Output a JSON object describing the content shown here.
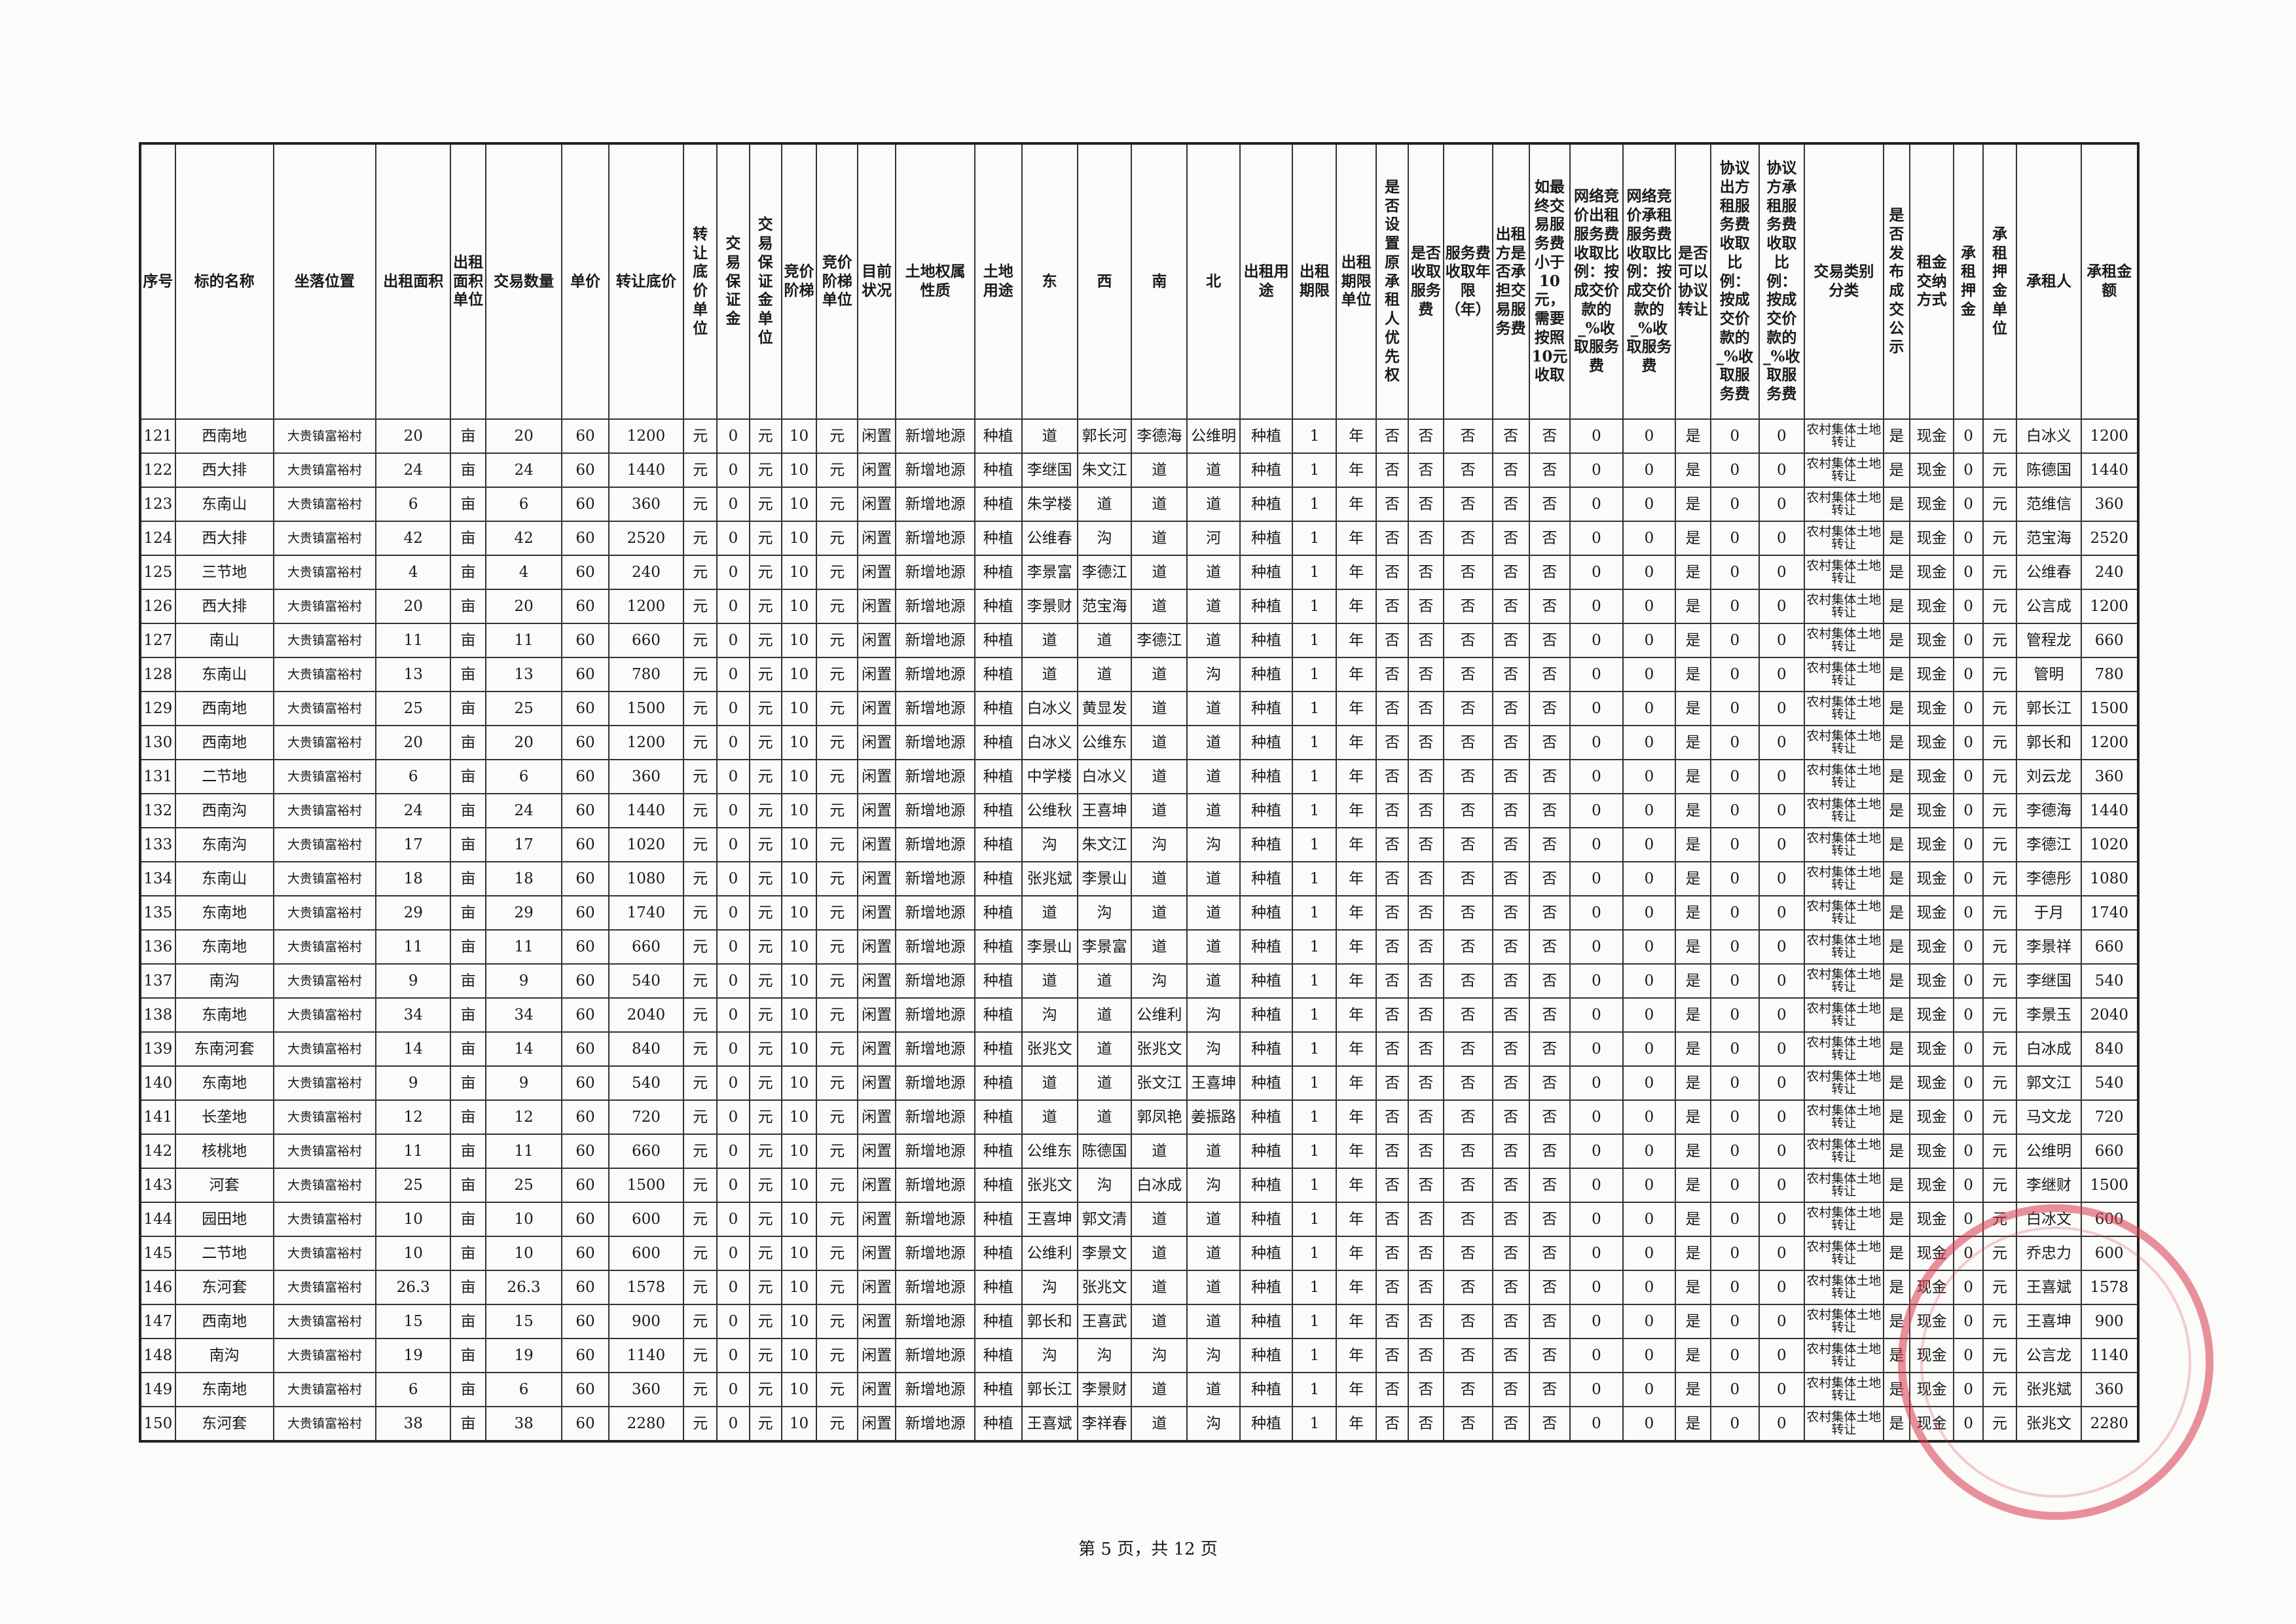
{
  "table": {
    "header": [
      "序号",
      "标的名称",
      "坐落位置",
      "出租面积",
      "出租面积单位",
      "交易数量",
      "单价",
      "转让底价",
      "转让底价单位",
      "交易保证金",
      "交易保证金单位",
      "竞价阶梯",
      "竞价阶梯单位",
      "目前状况",
      "土地权属性质",
      "土地用途",
      "东",
      "西",
      "南",
      "北",
      "出租用途",
      "出租期限",
      "出租期限单位",
      "是否设置原承租人优先权",
      "是否收取服务费",
      "服务费收取年限（年）",
      "出租方是否承担交易服务费",
      "如最终交易服务费小于10元，需要按照10元收取",
      "网络竞价出租服务费收取比例：按成交价款的_%收取服务费",
      "网络竞价承租服务费收取比例：按成交价款的_%收取服务费",
      "是否可以协议转让",
      "协议出方租服务费收取比例：按成交价款的_%收取服务费",
      "协议方承租服务费收取比例：按成交价款的_%收取服务费",
      "交易类别分类",
      "是否发布成交公示",
      "租金交纳方式",
      "承租押金",
      "承租押金单位",
      "承租人",
      "承租金额"
    ],
    "rows": [
      [
        "121",
        "西南地",
        "大贵镇富裕村",
        "20",
        "亩",
        "20",
        "60",
        "1200",
        "元",
        "0",
        "元",
        "10",
        "元",
        "闲置",
        "新增地源",
        "种植",
        "道",
        "郭长河",
        "李德海",
        "公维明",
        "种植",
        "1",
        "年",
        "否",
        "否",
        "否",
        "否",
        "否",
        "0",
        "0",
        "是",
        "0",
        "0",
        "农村集体土地转让",
        "是",
        "现金",
        "0",
        "元",
        "白冰义",
        "1200"
      ],
      [
        "122",
        "西大排",
        "大贵镇富裕村",
        "24",
        "亩",
        "24",
        "60",
        "1440",
        "元",
        "0",
        "元",
        "10",
        "元",
        "闲置",
        "新增地源",
        "种植",
        "李继国",
        "朱文江",
        "道",
        "道",
        "种植",
        "1",
        "年",
        "否",
        "否",
        "否",
        "否",
        "否",
        "0",
        "0",
        "是",
        "0",
        "0",
        "农村集体土地转让",
        "是",
        "现金",
        "0",
        "元",
        "陈德国",
        "1440"
      ],
      [
        "123",
        "东南山",
        "大贵镇富裕村",
        "6",
        "亩",
        "6",
        "60",
        "360",
        "元",
        "0",
        "元",
        "10",
        "元",
        "闲置",
        "新增地源",
        "种植",
        "朱学楼",
        "道",
        "道",
        "道",
        "种植",
        "1",
        "年",
        "否",
        "否",
        "否",
        "否",
        "否",
        "0",
        "0",
        "是",
        "0",
        "0",
        "农村集体土地转让",
        "是",
        "现金",
        "0",
        "元",
        "范维信",
        "360"
      ],
      [
        "124",
        "西大排",
        "大贵镇富裕村",
        "42",
        "亩",
        "42",
        "60",
        "2520",
        "元",
        "0",
        "元",
        "10",
        "元",
        "闲置",
        "新增地源",
        "种植",
        "公维春",
        "沟",
        "道",
        "河",
        "种植",
        "1",
        "年",
        "否",
        "否",
        "否",
        "否",
        "否",
        "0",
        "0",
        "是",
        "0",
        "0",
        "农村集体土地转让",
        "是",
        "现金",
        "0",
        "元",
        "范宝海",
        "2520"
      ],
      [
        "125",
        "三节地",
        "大贵镇富裕村",
        "4",
        "亩",
        "4",
        "60",
        "240",
        "元",
        "0",
        "元",
        "10",
        "元",
        "闲置",
        "新增地源",
        "种植",
        "李景富",
        "李德江",
        "道",
        "道",
        "种植",
        "1",
        "年",
        "否",
        "否",
        "否",
        "否",
        "否",
        "0",
        "0",
        "是",
        "0",
        "0",
        "农村集体土地转让",
        "是",
        "现金",
        "0",
        "元",
        "公维春",
        "240"
      ],
      [
        "126",
        "西大排",
        "大贵镇富裕村",
        "20",
        "亩",
        "20",
        "60",
        "1200",
        "元",
        "0",
        "元",
        "10",
        "元",
        "闲置",
        "新增地源",
        "种植",
        "李景财",
        "范宝海",
        "道",
        "道",
        "种植",
        "1",
        "年",
        "否",
        "否",
        "否",
        "否",
        "否",
        "0",
        "0",
        "是",
        "0",
        "0",
        "农村集体土地转让",
        "是",
        "现金",
        "0",
        "元",
        "公言成",
        "1200"
      ],
      [
        "127",
        "南山",
        "大贵镇富裕村",
        "11",
        "亩",
        "11",
        "60",
        "660",
        "元",
        "0",
        "元",
        "10",
        "元",
        "闲置",
        "新增地源",
        "种植",
        "道",
        "道",
        "李德江",
        "道",
        "种植",
        "1",
        "年",
        "否",
        "否",
        "否",
        "否",
        "否",
        "0",
        "0",
        "是",
        "0",
        "0",
        "农村集体土地转让",
        "是",
        "现金",
        "0",
        "元",
        "管程龙",
        "660"
      ],
      [
        "128",
        "东南山",
        "大贵镇富裕村",
        "13",
        "亩",
        "13",
        "60",
        "780",
        "元",
        "0",
        "元",
        "10",
        "元",
        "闲置",
        "新增地源",
        "种植",
        "道",
        "道",
        "道",
        "沟",
        "种植",
        "1",
        "年",
        "否",
        "否",
        "否",
        "否",
        "否",
        "0",
        "0",
        "是",
        "0",
        "0",
        "农村集体土地转让",
        "是",
        "现金",
        "0",
        "元",
        "管明",
        "780"
      ],
      [
        "129",
        "西南地",
        "大贵镇富裕村",
        "25",
        "亩",
        "25",
        "60",
        "1500",
        "元",
        "0",
        "元",
        "10",
        "元",
        "闲置",
        "新增地源",
        "种植",
        "白冰义",
        "黄显发",
        "道",
        "道",
        "种植",
        "1",
        "年",
        "否",
        "否",
        "否",
        "否",
        "否",
        "0",
        "0",
        "是",
        "0",
        "0",
        "农村集体土地转让",
        "是",
        "现金",
        "0",
        "元",
        "郭长江",
        "1500"
      ],
      [
        "130",
        "西南地",
        "大贵镇富裕村",
        "20",
        "亩",
        "20",
        "60",
        "1200",
        "元",
        "0",
        "元",
        "10",
        "元",
        "闲置",
        "新增地源",
        "种植",
        "白冰义",
        "公维东",
        "道",
        "道",
        "种植",
        "1",
        "年",
        "否",
        "否",
        "否",
        "否",
        "否",
        "0",
        "0",
        "是",
        "0",
        "0",
        "农村集体土地转让",
        "是",
        "现金",
        "0",
        "元",
        "郭长和",
        "1200"
      ],
      [
        "131",
        "二节地",
        "大贵镇富裕村",
        "6",
        "亩",
        "6",
        "60",
        "360",
        "元",
        "0",
        "元",
        "10",
        "元",
        "闲置",
        "新增地源",
        "种植",
        "中学楼",
        "白冰义",
        "道",
        "道",
        "种植",
        "1",
        "年",
        "否",
        "否",
        "否",
        "否",
        "否",
        "0",
        "0",
        "是",
        "0",
        "0",
        "农村集体土地转让",
        "是",
        "现金",
        "0",
        "元",
        "刘云龙",
        "360"
      ],
      [
        "132",
        "西南沟",
        "大贵镇富裕村",
        "24",
        "亩",
        "24",
        "60",
        "1440",
        "元",
        "0",
        "元",
        "10",
        "元",
        "闲置",
        "新增地源",
        "种植",
        "公维秋",
        "王喜坤",
        "道",
        "道",
        "种植",
        "1",
        "年",
        "否",
        "否",
        "否",
        "否",
        "否",
        "0",
        "0",
        "是",
        "0",
        "0",
        "农村集体土地转让",
        "是",
        "现金",
        "0",
        "元",
        "李德海",
        "1440"
      ],
      [
        "133",
        "东南沟",
        "大贵镇富裕村",
        "17",
        "亩",
        "17",
        "60",
        "1020",
        "元",
        "0",
        "元",
        "10",
        "元",
        "闲置",
        "新增地源",
        "种植",
        "沟",
        "朱文江",
        "沟",
        "沟",
        "种植",
        "1",
        "年",
        "否",
        "否",
        "否",
        "否",
        "否",
        "0",
        "0",
        "是",
        "0",
        "0",
        "农村集体土地转让",
        "是",
        "现金",
        "0",
        "元",
        "李德江",
        "1020"
      ],
      [
        "134",
        "东南山",
        "大贵镇富裕村",
        "18",
        "亩",
        "18",
        "60",
        "1080",
        "元",
        "0",
        "元",
        "10",
        "元",
        "闲置",
        "新增地源",
        "种植",
        "张兆斌",
        "李景山",
        "道",
        "道",
        "种植",
        "1",
        "年",
        "否",
        "否",
        "否",
        "否",
        "否",
        "0",
        "0",
        "是",
        "0",
        "0",
        "农村集体土地转让",
        "是",
        "现金",
        "0",
        "元",
        "李德彤",
        "1080"
      ],
      [
        "135",
        "东南地",
        "大贵镇富裕村",
        "29",
        "亩",
        "29",
        "60",
        "1740",
        "元",
        "0",
        "元",
        "10",
        "元",
        "闲置",
        "新增地源",
        "种植",
        "道",
        "沟",
        "道",
        "道",
        "种植",
        "1",
        "年",
        "否",
        "否",
        "否",
        "否",
        "否",
        "0",
        "0",
        "是",
        "0",
        "0",
        "农村集体土地转让",
        "是",
        "现金",
        "0",
        "元",
        "于月",
        "1740"
      ],
      [
        "136",
        "东南地",
        "大贵镇富裕村",
        "11",
        "亩",
        "11",
        "60",
        "660",
        "元",
        "0",
        "元",
        "10",
        "元",
        "闲置",
        "新增地源",
        "种植",
        "李景山",
        "李景富",
        "道",
        "道",
        "种植",
        "1",
        "年",
        "否",
        "否",
        "否",
        "否",
        "否",
        "0",
        "0",
        "是",
        "0",
        "0",
        "农村集体土地转让",
        "是",
        "现金",
        "0",
        "元",
        "李景祥",
        "660"
      ],
      [
        "137",
        "南沟",
        "大贵镇富裕村",
        "9",
        "亩",
        "9",
        "60",
        "540",
        "元",
        "0",
        "元",
        "10",
        "元",
        "闲置",
        "新增地源",
        "种植",
        "道",
        "道",
        "沟",
        "道",
        "种植",
        "1",
        "年",
        "否",
        "否",
        "否",
        "否",
        "否",
        "0",
        "0",
        "是",
        "0",
        "0",
        "农村集体土地转让",
        "是",
        "现金",
        "0",
        "元",
        "李继国",
        "540"
      ],
      [
        "138",
        "东南地",
        "大贵镇富裕村",
        "34",
        "亩",
        "34",
        "60",
        "2040",
        "元",
        "0",
        "元",
        "10",
        "元",
        "闲置",
        "新增地源",
        "种植",
        "沟",
        "道",
        "公维利",
        "沟",
        "种植",
        "1",
        "年",
        "否",
        "否",
        "否",
        "否",
        "否",
        "0",
        "0",
        "是",
        "0",
        "0",
        "农村集体土地转让",
        "是",
        "现金",
        "0",
        "元",
        "李景玉",
        "2040"
      ],
      [
        "139",
        "东南河套",
        "大贵镇富裕村",
        "14",
        "亩",
        "14",
        "60",
        "840",
        "元",
        "0",
        "元",
        "10",
        "元",
        "闲置",
        "新增地源",
        "种植",
        "张兆文",
        "道",
        "张兆文",
        "沟",
        "种植",
        "1",
        "年",
        "否",
        "否",
        "否",
        "否",
        "否",
        "0",
        "0",
        "是",
        "0",
        "0",
        "农村集体土地转让",
        "是",
        "现金",
        "0",
        "元",
        "白冰成",
        "840"
      ],
      [
        "140",
        "东南地",
        "大贵镇富裕村",
        "9",
        "亩",
        "9",
        "60",
        "540",
        "元",
        "0",
        "元",
        "10",
        "元",
        "闲置",
        "新增地源",
        "种植",
        "道",
        "道",
        "张文江",
        "王喜坤",
        "种植",
        "1",
        "年",
        "否",
        "否",
        "否",
        "否",
        "否",
        "0",
        "0",
        "是",
        "0",
        "0",
        "农村集体土地转让",
        "是",
        "现金",
        "0",
        "元",
        "郭文江",
        "540"
      ],
      [
        "141",
        "长垄地",
        "大贵镇富裕村",
        "12",
        "亩",
        "12",
        "60",
        "720",
        "元",
        "0",
        "元",
        "10",
        "元",
        "闲置",
        "新增地源",
        "种植",
        "道",
        "道",
        "郭凤艳",
        "姜振路",
        "种植",
        "1",
        "年",
        "否",
        "否",
        "否",
        "否",
        "否",
        "0",
        "0",
        "是",
        "0",
        "0",
        "农村集体土地转让",
        "是",
        "现金",
        "0",
        "元",
        "马文龙",
        "720"
      ],
      [
        "142",
        "核桃地",
        "大贵镇富裕村",
        "11",
        "亩",
        "11",
        "60",
        "660",
        "元",
        "0",
        "元",
        "10",
        "元",
        "闲置",
        "新增地源",
        "种植",
        "公维东",
        "陈德国",
        "道",
        "道",
        "种植",
        "1",
        "年",
        "否",
        "否",
        "否",
        "否",
        "否",
        "0",
        "0",
        "是",
        "0",
        "0",
        "农村集体土地转让",
        "是",
        "现金",
        "0",
        "元",
        "公维明",
        "660"
      ],
      [
        "143",
        "河套",
        "大贵镇富裕村",
        "25",
        "亩",
        "25",
        "60",
        "1500",
        "元",
        "0",
        "元",
        "10",
        "元",
        "闲置",
        "新增地源",
        "种植",
        "张兆文",
        "沟",
        "白冰成",
        "沟",
        "种植",
        "1",
        "年",
        "否",
        "否",
        "否",
        "否",
        "否",
        "0",
        "0",
        "是",
        "0",
        "0",
        "农村集体土地转让",
        "是",
        "现金",
        "0",
        "元",
        "李继财",
        "1500"
      ],
      [
        "144",
        "园田地",
        "大贵镇富裕村",
        "10",
        "亩",
        "10",
        "60",
        "600",
        "元",
        "0",
        "元",
        "10",
        "元",
        "闲置",
        "新增地源",
        "种植",
        "王喜坤",
        "郭文清",
        "道",
        "道",
        "种植",
        "1",
        "年",
        "否",
        "否",
        "否",
        "否",
        "否",
        "0",
        "0",
        "是",
        "0",
        "0",
        "农村集体土地转让",
        "是",
        "现金",
        "0",
        "元",
        "白冰文",
        "600"
      ],
      [
        "145",
        "二节地",
        "大贵镇富裕村",
        "10",
        "亩",
        "10",
        "60",
        "600",
        "元",
        "0",
        "元",
        "10",
        "元",
        "闲置",
        "新增地源",
        "种植",
        "公维利",
        "李景文",
        "道",
        "道",
        "种植",
        "1",
        "年",
        "否",
        "否",
        "否",
        "否",
        "否",
        "0",
        "0",
        "是",
        "0",
        "0",
        "农村集体土地转让",
        "是",
        "现金",
        "0",
        "元",
        "乔忠力",
        "600"
      ],
      [
        "146",
        "东河套",
        "大贵镇富裕村",
        "26.3",
        "亩",
        "26.3",
        "60",
        "1578",
        "元",
        "0",
        "元",
        "10",
        "元",
        "闲置",
        "新增地源",
        "种植",
        "沟",
        "张兆文",
        "道",
        "道",
        "种植",
        "1",
        "年",
        "否",
        "否",
        "否",
        "否",
        "否",
        "0",
        "0",
        "是",
        "0",
        "0",
        "农村集体土地转让",
        "是",
        "现金",
        "0",
        "元",
        "王喜斌",
        "1578"
      ],
      [
        "147",
        "西南地",
        "大贵镇富裕村",
        "15",
        "亩",
        "15",
        "60",
        "900",
        "元",
        "0",
        "元",
        "10",
        "元",
        "闲置",
        "新增地源",
        "种植",
        "郭长和",
        "王喜武",
        "道",
        "道",
        "种植",
        "1",
        "年",
        "否",
        "否",
        "否",
        "否",
        "否",
        "0",
        "0",
        "是",
        "0",
        "0",
        "农村集体土地转让",
        "是",
        "现金",
        "0",
        "元",
        "王喜坤",
        "900"
      ],
      [
        "148",
        "南沟",
        "大贵镇富裕村",
        "19",
        "亩",
        "19",
        "60",
        "1140",
        "元",
        "0",
        "元",
        "10",
        "元",
        "闲置",
        "新增地源",
        "种植",
        "沟",
        "沟",
        "沟",
        "沟",
        "种植",
        "1",
        "年",
        "否",
        "否",
        "否",
        "否",
        "否",
        "0",
        "0",
        "是",
        "0",
        "0",
        "农村集体土地转让",
        "是",
        "现金",
        "0",
        "元",
        "公言龙",
        "1140"
      ],
      [
        "149",
        "东南地",
        "大贵镇富裕村",
        "6",
        "亩",
        "6",
        "60",
        "360",
        "元",
        "0",
        "元",
        "10",
        "元",
        "闲置",
        "新增地源",
        "种植",
        "郭长江",
        "李景财",
        "道",
        "道",
        "种植",
        "1",
        "年",
        "否",
        "否",
        "否",
        "否",
        "否",
        "0",
        "0",
        "是",
        "0",
        "0",
        "农村集体土地转让",
        "是",
        "现金",
        "0",
        "元",
        "张兆斌",
        "360"
      ],
      [
        "150",
        "东河套",
        "大贵镇富裕村",
        "38",
        "亩",
        "38",
        "60",
        "2280",
        "元",
        "0",
        "元",
        "10",
        "元",
        "闲置",
        "新增地源",
        "种植",
        "王喜斌",
        "李祥春",
        "道",
        "沟",
        "种植",
        "1",
        "年",
        "否",
        "否",
        "否",
        "否",
        "否",
        "0",
        "0",
        "是",
        "0",
        "0",
        "农村集体土地转让",
        "是",
        "现金",
        "0",
        "元",
        "张兆文",
        "2280"
      ]
    ]
  },
  "footer": {
    "page": "第 5 页，共 12 页"
  }
}
